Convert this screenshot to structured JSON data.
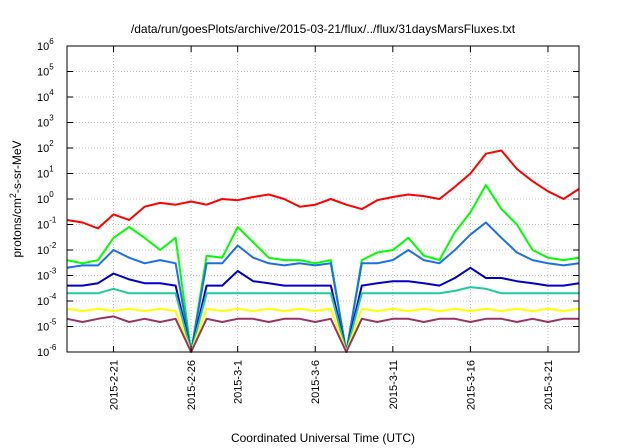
{
  "chart_data": {
    "type": "line",
    "title": "/data/run/goesPlots/archive/2015-03-21/flux/../flux/31daysMarsFluxes.txt",
    "xlabel": "Coordinated Universal Time (UTC)",
    "ylabel_parts": {
      "base": "protons/cm",
      "sup": "2",
      "rest": "-s-sr-MeV"
    },
    "y_scale": "log",
    "ylim": [
      1e-06,
      1000000.0
    ],
    "y_ticks": [
      {
        "value": 1e-06,
        "base": "10",
        "exp": "-6"
      },
      {
        "value": 1e-05,
        "base": "10",
        "exp": "-5"
      },
      {
        "value": 0.0001,
        "base": "10",
        "exp": "-4"
      },
      {
        "value": 0.001,
        "base": "10",
        "exp": "-3"
      },
      {
        "value": 0.01,
        "base": "10",
        "exp": "-2"
      },
      {
        "value": 0.1,
        "base": "10",
        "exp": "-1"
      },
      {
        "value": 1.0,
        "base": "10",
        "exp": "0"
      },
      {
        "value": 10.0,
        "base": "10",
        "exp": "1"
      },
      {
        "value": 100.0,
        "base": "10",
        "exp": "2"
      },
      {
        "value": 1000.0,
        "base": "10",
        "exp": "3"
      },
      {
        "value": 10000.0,
        "base": "10",
        "exp": "4"
      },
      {
        "value": 100000.0,
        "base": "10",
        "exp": "5"
      },
      {
        "value": 1000000.0,
        "base": "10",
        "exp": "6"
      }
    ],
    "xlim": [
      "2015-02-18",
      "2015-03-23"
    ],
    "x_ticks": [
      {
        "date": "2015-02-21",
        "label": "2015-2-21"
      },
      {
        "date": "2015-02-26",
        "label": "2015-2-26"
      },
      {
        "date": "2015-03-01",
        "label": "2015-3-1"
      },
      {
        "date": "2015-03-06",
        "label": "2015-3-6"
      },
      {
        "date": "2015-03-11",
        "label": "2015-3-11"
      },
      {
        "date": "2015-03-16",
        "label": "2015-3-16"
      },
      {
        "date": "2015-03-21",
        "label": "2015-3-21"
      }
    ],
    "grid": true,
    "series": [
      {
        "color": "#ff0000",
        "points": [
          [
            "2015-02-18",
            0.15
          ],
          [
            "2015-02-19",
            0.12
          ],
          [
            "2015-02-20",
            0.07
          ],
          [
            "2015-02-21",
            0.25
          ],
          [
            "2015-02-22",
            0.15
          ],
          [
            "2015-02-23",
            0.5
          ],
          [
            "2015-02-24",
            0.7
          ],
          [
            "2015-02-25",
            0.6
          ],
          [
            "2015-02-26",
            0.8
          ],
          [
            "2015-02-27",
            0.6
          ],
          [
            "2015-02-28",
            1.0
          ],
          [
            "2015-03-01",
            0.9
          ],
          [
            "2015-03-02",
            1.2
          ],
          [
            "2015-03-03",
            1.5
          ],
          [
            "2015-03-04",
            1.0
          ],
          [
            "2015-03-05",
            0.5
          ],
          [
            "2015-03-06",
            0.6
          ],
          [
            "2015-03-07",
            1.0
          ],
          [
            "2015-03-08",
            0.6
          ],
          [
            "2015-03-09",
            0.4
          ],
          [
            "2015-03-10",
            0.9
          ],
          [
            "2015-03-11",
            1.2
          ],
          [
            "2015-03-12",
            1.5
          ],
          [
            "2015-03-13",
            1.3
          ],
          [
            "2015-03-14",
            1.0
          ],
          [
            "2015-03-15",
            3.0
          ],
          [
            "2015-03-16",
            10.0
          ],
          [
            "2015-03-17",
            60.0
          ],
          [
            "2015-03-18",
            80.0
          ],
          [
            "2015-03-19",
            15.0
          ],
          [
            "2015-03-20",
            5.0
          ],
          [
            "2015-03-21",
            2.0
          ],
          [
            "2015-03-22",
            1.0
          ],
          [
            "2015-03-23",
            2.5
          ]
        ]
      },
      {
        "color": "#00ff00",
        "points": [
          [
            "2015-02-18",
            0.004
          ],
          [
            "2015-02-19",
            0.003
          ],
          [
            "2015-02-20",
            0.004
          ],
          [
            "2015-02-21",
            0.03
          ],
          [
            "2015-02-22",
            0.08
          ],
          [
            "2015-02-23",
            0.03
          ],
          [
            "2015-02-24",
            0.01
          ],
          [
            "2015-02-25",
            0.03
          ],
          [
            "2015-02-26",
            1e-06
          ],
          [
            "2015-02-27",
            0.006
          ],
          [
            "2015-02-28",
            0.005
          ],
          [
            "2015-03-01",
            0.08
          ],
          [
            "2015-03-02",
            0.02
          ],
          [
            "2015-03-03",
            0.005
          ],
          [
            "2015-03-04",
            0.004
          ],
          [
            "2015-03-05",
            0.004
          ],
          [
            "2015-03-06",
            0.003
          ],
          [
            "2015-03-07",
            0.004
          ],
          [
            "2015-03-08",
            1e-06
          ],
          [
            "2015-03-09",
            0.004
          ],
          [
            "2015-03-10",
            0.008
          ],
          [
            "2015-03-11",
            0.01
          ],
          [
            "2015-03-12",
            0.03
          ],
          [
            "2015-03-13",
            0.006
          ],
          [
            "2015-03-14",
            0.004
          ],
          [
            "2015-03-15",
            0.05
          ],
          [
            "2015-03-16",
            0.3
          ],
          [
            "2015-03-17",
            3.5
          ],
          [
            "2015-03-18",
            0.4
          ],
          [
            "2015-03-19",
            0.1
          ],
          [
            "2015-03-20",
            0.01
          ],
          [
            "2015-03-21",
            0.005
          ],
          [
            "2015-03-22",
            0.004
          ],
          [
            "2015-03-23",
            0.005
          ]
        ]
      },
      {
        "color": "#1e6fe6",
        "points": [
          [
            "2015-02-18",
            0.002
          ],
          [
            "2015-02-19",
            0.0025
          ],
          [
            "2015-02-20",
            0.0025
          ],
          [
            "2015-02-21",
            0.01
          ],
          [
            "2015-02-22",
            0.005
          ],
          [
            "2015-02-23",
            0.003
          ],
          [
            "2015-02-24",
            0.004
          ],
          [
            "2015-02-25",
            0.003
          ],
          [
            "2015-02-26",
            1e-06
          ],
          [
            "2015-02-27",
            0.003
          ],
          [
            "2015-02-28",
            0.003
          ],
          [
            "2015-03-01",
            0.015
          ],
          [
            "2015-03-02",
            0.005
          ],
          [
            "2015-03-03",
            0.003
          ],
          [
            "2015-03-04",
            0.0025
          ],
          [
            "2015-03-05",
            0.003
          ],
          [
            "2015-03-06",
            0.0025
          ],
          [
            "2015-03-07",
            0.003
          ],
          [
            "2015-03-08",
            1e-06
          ],
          [
            "2015-03-09",
            0.003
          ],
          [
            "2015-03-10",
            0.003
          ],
          [
            "2015-03-11",
            0.004
          ],
          [
            "2015-03-12",
            0.01
          ],
          [
            "2015-03-13",
            0.004
          ],
          [
            "2015-03-14",
            0.003
          ],
          [
            "2015-03-15",
            0.01
          ],
          [
            "2015-03-16",
            0.04
          ],
          [
            "2015-03-17",
            0.12
          ],
          [
            "2015-03-18",
            0.03
          ],
          [
            "2015-03-19",
            0.008
          ],
          [
            "2015-03-20",
            0.004
          ],
          [
            "2015-03-21",
            0.003
          ],
          [
            "2015-03-22",
            0.0025
          ],
          [
            "2015-03-23",
            0.003
          ]
        ]
      },
      {
        "color": "#0000cc",
        "points": [
          [
            "2015-02-18",
            0.0004
          ],
          [
            "2015-02-19",
            0.0004
          ],
          [
            "2015-02-20",
            0.0005
          ],
          [
            "2015-02-21",
            0.0012
          ],
          [
            "2015-02-22",
            0.0007
          ],
          [
            "2015-02-23",
            0.0005
          ],
          [
            "2015-02-24",
            0.0005
          ],
          [
            "2015-02-25",
            0.0004
          ],
          [
            "2015-02-26",
            1e-06
          ],
          [
            "2015-02-27",
            0.0004
          ],
          [
            "2015-02-28",
            0.0004
          ],
          [
            "2015-03-01",
            0.0015
          ],
          [
            "2015-03-02",
            0.0006
          ],
          [
            "2015-03-03",
            0.0005
          ],
          [
            "2015-03-04",
            0.0004
          ],
          [
            "2015-03-05",
            0.0004
          ],
          [
            "2015-03-06",
            0.0004
          ],
          [
            "2015-03-07",
            0.0004
          ],
          [
            "2015-03-08",
            1e-06
          ],
          [
            "2015-03-09",
            0.0004
          ],
          [
            "2015-03-10",
            0.0005
          ],
          [
            "2015-03-11",
            0.0006
          ],
          [
            "2015-03-12",
            0.0006
          ],
          [
            "2015-03-13",
            0.0005
          ],
          [
            "2015-03-14",
            0.0004
          ],
          [
            "2015-03-15",
            0.0008
          ],
          [
            "2015-03-16",
            0.002
          ],
          [
            "2015-03-17",
            0.0008
          ],
          [
            "2015-03-18",
            0.0008
          ],
          [
            "2015-03-19",
            0.0006
          ],
          [
            "2015-03-20",
            0.0005
          ],
          [
            "2015-03-21",
            0.0004
          ],
          [
            "2015-03-22",
            0.0004
          ],
          [
            "2015-03-23",
            0.0005
          ]
        ]
      },
      {
        "color": "#20c9a0",
        "points": [
          [
            "2015-02-18",
            0.0002
          ],
          [
            "2015-02-19",
            0.0002
          ],
          [
            "2015-02-20",
            0.0002
          ],
          [
            "2015-02-21",
            0.0003
          ],
          [
            "2015-02-22",
            0.0002
          ],
          [
            "2015-02-23",
            0.0002
          ],
          [
            "2015-02-24",
            0.0002
          ],
          [
            "2015-02-25",
            0.0002
          ],
          [
            "2015-02-26",
            1e-06
          ],
          [
            "2015-02-27",
            0.0002
          ],
          [
            "2015-02-28",
            0.0002
          ],
          [
            "2015-03-01",
            0.0002
          ],
          [
            "2015-03-02",
            0.0002
          ],
          [
            "2015-03-03",
            0.0002
          ],
          [
            "2015-03-04",
            0.0002
          ],
          [
            "2015-03-05",
            0.0002
          ],
          [
            "2015-03-06",
            0.0002
          ],
          [
            "2015-03-07",
            0.0002
          ],
          [
            "2015-03-08",
            1e-06
          ],
          [
            "2015-03-09",
            0.0002
          ],
          [
            "2015-03-10",
            0.0002
          ],
          [
            "2015-03-11",
            0.0002
          ],
          [
            "2015-03-12",
            0.0002
          ],
          [
            "2015-03-13",
            0.0002
          ],
          [
            "2015-03-14",
            0.0002
          ],
          [
            "2015-03-15",
            0.00025
          ],
          [
            "2015-03-16",
            0.00035
          ],
          [
            "2015-03-17",
            0.0003
          ],
          [
            "2015-03-18",
            0.0002
          ],
          [
            "2015-03-19",
            0.0002
          ],
          [
            "2015-03-20",
            0.0002
          ],
          [
            "2015-03-21",
            0.0002
          ],
          [
            "2015-03-22",
            0.0002
          ],
          [
            "2015-03-23",
            0.0002
          ]
        ]
      },
      {
        "color": "#ffff00",
        "points": [
          [
            "2015-02-18",
            5e-05
          ],
          [
            "2015-02-19",
            4e-05
          ],
          [
            "2015-02-20",
            5e-05
          ],
          [
            "2015-02-21",
            4e-05
          ],
          [
            "2015-02-22",
            5e-05
          ],
          [
            "2015-02-23",
            4e-05
          ],
          [
            "2015-02-24",
            5e-05
          ],
          [
            "2015-02-25",
            4e-05
          ],
          [
            "2015-02-26",
            1e-06
          ],
          [
            "2015-02-27",
            5e-05
          ],
          [
            "2015-02-28",
            4e-05
          ],
          [
            "2015-03-01",
            5e-05
          ],
          [
            "2015-03-02",
            4e-05
          ],
          [
            "2015-03-03",
            5e-05
          ],
          [
            "2015-03-04",
            4e-05
          ],
          [
            "2015-03-05",
            5e-05
          ],
          [
            "2015-03-06",
            4e-05
          ],
          [
            "2015-03-07",
            5e-05
          ],
          [
            "2015-03-08",
            1e-06
          ],
          [
            "2015-03-09",
            5e-05
          ],
          [
            "2015-03-10",
            4e-05
          ],
          [
            "2015-03-11",
            5e-05
          ],
          [
            "2015-03-12",
            4e-05
          ],
          [
            "2015-03-13",
            5e-05
          ],
          [
            "2015-03-14",
            4e-05
          ],
          [
            "2015-03-15",
            5e-05
          ],
          [
            "2015-03-16",
            4e-05
          ],
          [
            "2015-03-17",
            5e-05
          ],
          [
            "2015-03-18",
            4e-05
          ],
          [
            "2015-03-19",
            5e-05
          ],
          [
            "2015-03-20",
            4e-05
          ],
          [
            "2015-03-21",
            5e-05
          ],
          [
            "2015-03-22",
            4e-05
          ],
          [
            "2015-03-23",
            5e-05
          ]
        ]
      },
      {
        "color": "#993366",
        "points": [
          [
            "2015-02-18",
            2e-05
          ],
          [
            "2015-02-19",
            1.5e-05
          ],
          [
            "2015-02-20",
            2e-05
          ],
          [
            "2015-02-21",
            2.5e-05
          ],
          [
            "2015-02-22",
            1.5e-05
          ],
          [
            "2015-02-23",
            2e-05
          ],
          [
            "2015-02-24",
            1.5e-05
          ],
          [
            "2015-02-25",
            2e-05
          ],
          [
            "2015-02-26",
            1e-06
          ],
          [
            "2015-02-27",
            2e-05
          ],
          [
            "2015-02-28",
            1.5e-05
          ],
          [
            "2015-03-01",
            2e-05
          ],
          [
            "2015-03-02",
            2e-05
          ],
          [
            "2015-03-03",
            1.5e-05
          ],
          [
            "2015-03-04",
            2e-05
          ],
          [
            "2015-03-05",
            2e-05
          ],
          [
            "2015-03-06",
            1.5e-05
          ],
          [
            "2015-03-07",
            2e-05
          ],
          [
            "2015-03-08",
            1e-06
          ],
          [
            "2015-03-09",
            2e-05
          ],
          [
            "2015-03-10",
            1.5e-05
          ],
          [
            "2015-03-11",
            2e-05
          ],
          [
            "2015-03-12",
            2e-05
          ],
          [
            "2015-03-13",
            1.5e-05
          ],
          [
            "2015-03-14",
            2e-05
          ],
          [
            "2015-03-15",
            2e-05
          ],
          [
            "2015-03-16",
            1.5e-05
          ],
          [
            "2015-03-17",
            2e-05
          ],
          [
            "2015-03-18",
            2e-05
          ],
          [
            "2015-03-19",
            1.5e-05
          ],
          [
            "2015-03-20",
            2e-05
          ],
          [
            "2015-03-21",
            1.5e-05
          ],
          [
            "2015-03-22",
            2e-05
          ],
          [
            "2015-03-23",
            2e-05
          ]
        ]
      }
    ]
  }
}
